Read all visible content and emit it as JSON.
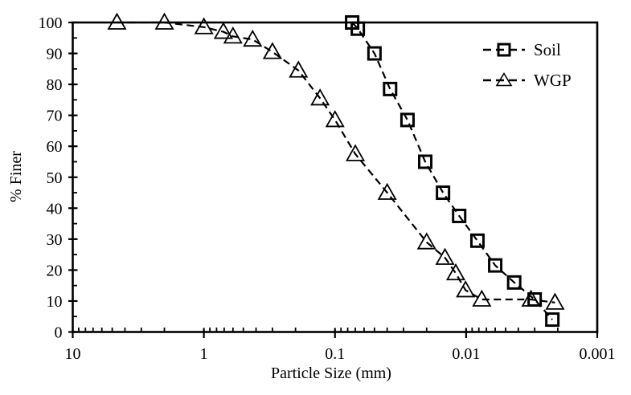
{
  "figure": {
    "background": "#ffffff",
    "foreground": "#000000"
  },
  "chart_data": {
    "type": "line",
    "title": "",
    "xlabel": "Particle Size (mm)",
    "ylabel": "% Finer",
    "x_scale": "log_reversed",
    "xlim": [
      10,
      0.001
    ],
    "x_tick_values": [
      10,
      1,
      0.1,
      0.01,
      0.001
    ],
    "x_tick_labels": [
      "10",
      "1",
      "0.1",
      "0.01",
      "0.001"
    ],
    "ylim": [
      0,
      100
    ],
    "y_major_tick_step": 10,
    "y_minor_tick_step": 5,
    "y_tick_labels": [
      "0",
      "10",
      "20",
      "30",
      "40",
      "50",
      "60",
      "70",
      "80",
      "90",
      "100"
    ],
    "grid": false,
    "legend_position": "top-right",
    "series": [
      {
        "name": "Soil",
        "marker": "square",
        "line_style": "dashed",
        "color": "#000000",
        "points": [
          [
            0.074,
            100
          ],
          [
            0.067,
            98
          ],
          [
            0.05,
            90
          ],
          [
            0.038,
            78.5
          ],
          [
            0.028,
            68.5
          ],
          [
            0.0205,
            55
          ],
          [
            0.015,
            45
          ],
          [
            0.0113,
            37.5
          ],
          [
            0.0082,
            29.5
          ],
          [
            0.006,
            21.5
          ],
          [
            0.0043,
            16
          ],
          [
            0.003,
            10.5
          ],
          [
            0.0022,
            4
          ]
        ]
      },
      {
        "name": "WGP",
        "marker": "triangle",
        "line_style": "dashed",
        "color": "#000000",
        "points": [
          [
            4.6,
            100
          ],
          [
            2.0,
            100
          ],
          [
            1.0,
            98.5
          ],
          [
            0.71,
            97
          ],
          [
            0.6,
            95.5
          ],
          [
            0.425,
            94.5
          ],
          [
            0.3,
            90.5
          ],
          [
            0.19,
            84.5
          ],
          [
            0.13,
            75.5
          ],
          [
            0.1,
            68.5
          ],
          [
            0.07,
            57.5
          ],
          [
            0.04,
            45
          ],
          [
            0.02,
            29
          ],
          [
            0.0145,
            24
          ],
          [
            0.012,
            19
          ],
          [
            0.0101,
            13.5
          ],
          [
            0.0076,
            10.5
          ],
          [
            0.0032,
            10.5
          ],
          [
            0.0021,
            9.5
          ]
        ]
      }
    ]
  }
}
